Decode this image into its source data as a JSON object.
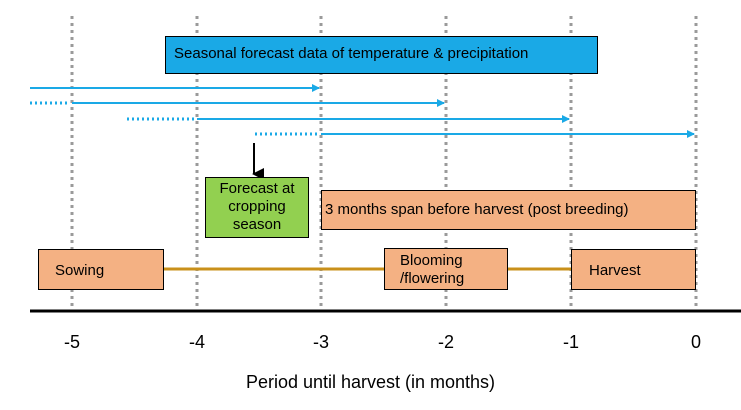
{
  "banner": {
    "label": "Seasonal forecast data of temperature & precipitation"
  },
  "forecast_box": {
    "label": "Forecast at\ncropping\nseason"
  },
  "span_box": {
    "label": "3 months span before harvest (post breeding)"
  },
  "stages": {
    "sowing": "Sowing",
    "blooming": "Blooming\n/flowering",
    "harvest": "Harvest"
  },
  "axis": {
    "ticks": [
      "-5",
      "-4",
      "-3",
      "-2",
      "-1",
      "0"
    ],
    "label": "Period until harvest (in months)"
  },
  "colors": {
    "arrow": "#1aa9e6",
    "banner": "#1aa9e6",
    "forecast": "#92d050",
    "stage": "#f4b183",
    "timeline": "#c9901a",
    "gridline": "#9a9a9a"
  }
}
